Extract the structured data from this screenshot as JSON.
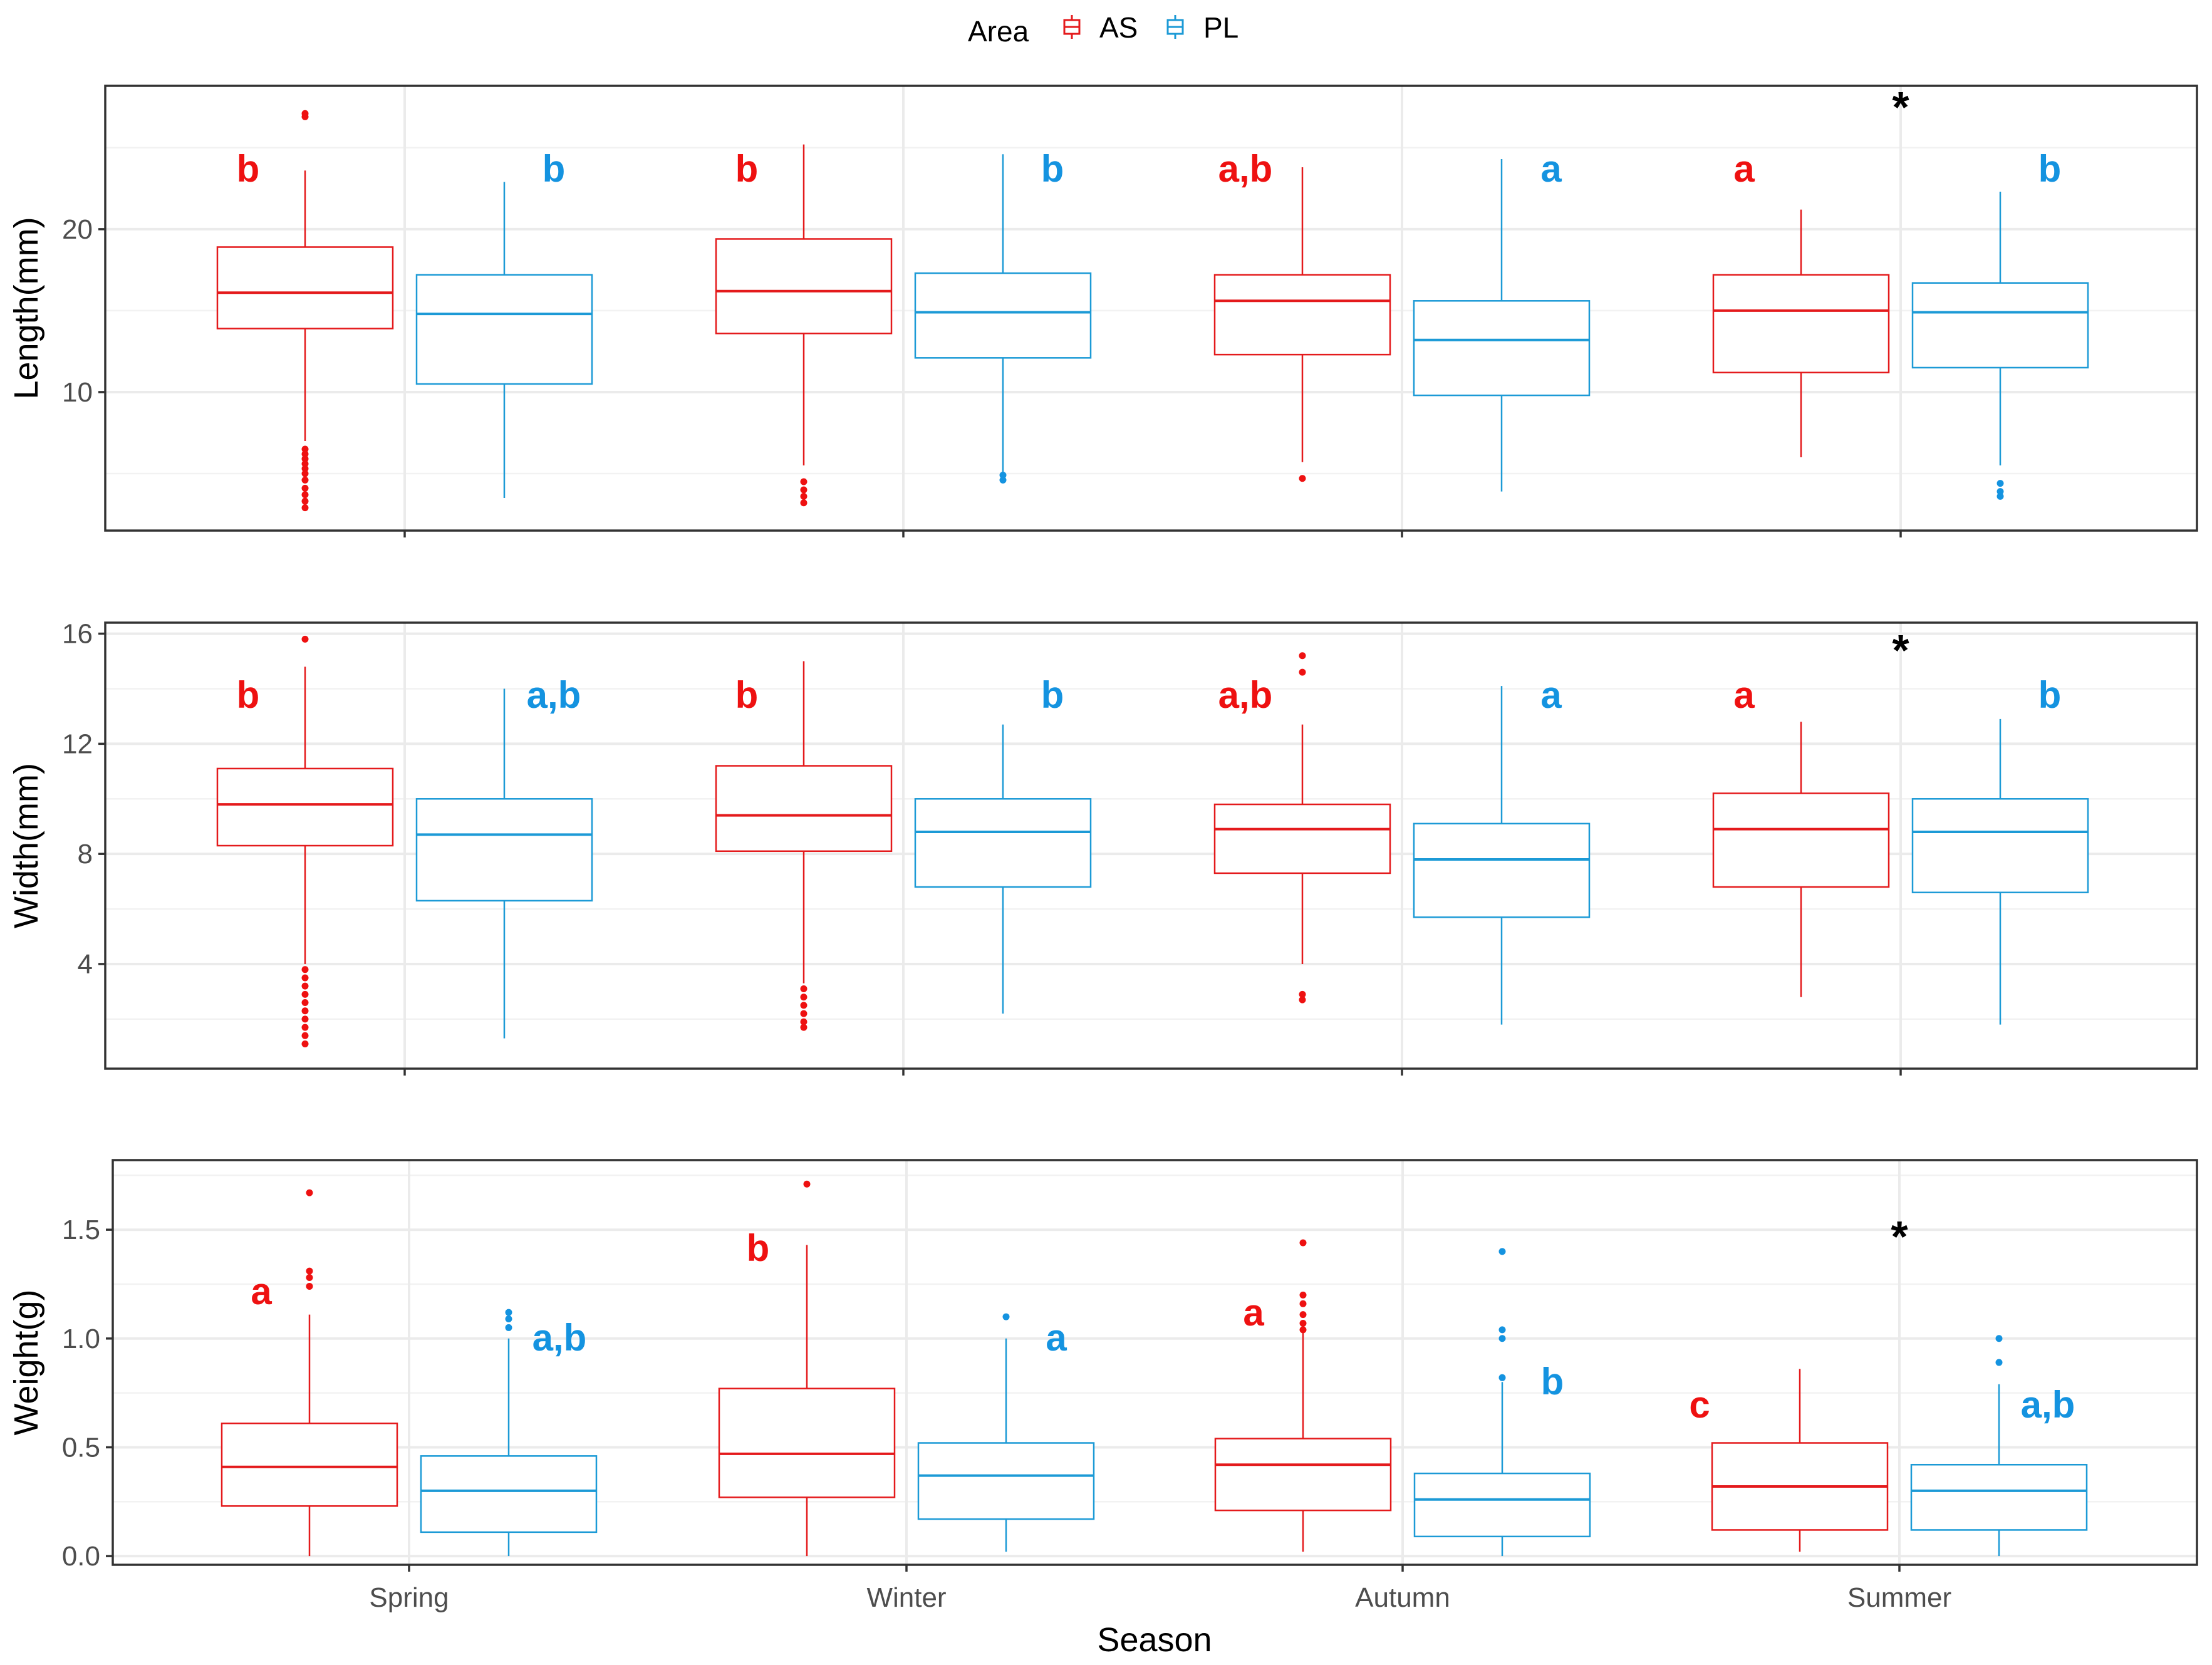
{
  "chart_data": {
    "type": "boxplot",
    "x_title": "Season",
    "legend": {
      "title": "Area",
      "position": "top",
      "entries": [
        {
          "name": "AS",
          "color": "#e41a1c"
        },
        {
          "name": "PL",
          "color": "#1c9ad6"
        }
      ]
    },
    "categories": [
      "Spring",
      "Winter",
      "Autumn",
      "Summer"
    ],
    "letter_colors": {
      "AS": "#ee1111",
      "PL": "#1493e0"
    },
    "panels": [
      {
        "ylabel": "Length(mm)",
        "ylim": [
          1.5,
          28.8
        ],
        "ticks": [
          10,
          20
        ],
        "tick_labels": [
          "10",
          "20"
        ],
        "minor_ticks": [
          5,
          15,
          25
        ],
        "groups": [
          {
            "category": "Spring",
            "area": "AS",
            "q1": 13.9,
            "median": 16.1,
            "q3": 18.9,
            "lower": 7.0,
            "upper": 23.6,
            "outliers": [
              26.9,
              27.1,
              6.5,
              6.2,
              5.9,
              5.6,
              5.3,
              5.0,
              4.6,
              4.1,
              3.7,
              3.3,
              2.9
            ],
            "letter": "b"
          },
          {
            "category": "Spring",
            "area": "PL",
            "q1": 10.5,
            "median": 14.8,
            "q3": 17.2,
            "lower": 3.5,
            "upper": 22.9,
            "outliers": [],
            "letter": "b"
          },
          {
            "category": "Winter",
            "area": "AS",
            "q1": 13.6,
            "median": 16.2,
            "q3": 19.4,
            "lower": 5.5,
            "upper": 25.2,
            "outliers": [
              4.5,
              4.0,
              3.6,
              3.2
            ],
            "letter": "b"
          },
          {
            "category": "Winter",
            "area": "PL",
            "q1": 12.1,
            "median": 14.9,
            "q3": 17.3,
            "lower": 5.0,
            "upper": 24.6,
            "outliers": [
              4.9,
              4.6
            ],
            "letter": "b"
          },
          {
            "category": "Autumn",
            "area": "AS",
            "q1": 12.3,
            "median": 15.6,
            "q3": 17.2,
            "lower": 5.7,
            "upper": 23.8,
            "outliers": [
              4.7
            ],
            "letter": "a,b"
          },
          {
            "category": "Autumn",
            "area": "PL",
            "q1": 9.8,
            "median": 13.2,
            "q3": 15.6,
            "lower": 3.9,
            "upper": 24.3,
            "outliers": [],
            "letter": "a"
          },
          {
            "category": "Summer",
            "area": "AS",
            "q1": 11.2,
            "median": 15.0,
            "q3": 17.2,
            "lower": 6.0,
            "upper": 21.2,
            "outliers": [],
            "letter": "a"
          },
          {
            "category": "Summer",
            "area": "PL",
            "q1": 11.5,
            "median": 14.9,
            "q3": 16.7,
            "lower": 5.5,
            "upper": 22.3,
            "outliers": [
              4.4,
              3.9,
              3.6
            ],
            "letter": "b"
          }
        ],
        "significance": [
          {
            "category": "Summer",
            "label": "*"
          }
        ]
      },
      {
        "ylabel": "Width(mm)",
        "ylim": [
          0.2,
          16.4
        ],
        "ticks": [
          4,
          8,
          12,
          16
        ],
        "tick_labels": [
          "4",
          "8",
          "12",
          "16"
        ],
        "minor_ticks": [
          2,
          6,
          10,
          14
        ],
        "groups": [
          {
            "category": "Spring",
            "area": "AS",
            "q1": 8.3,
            "median": 9.8,
            "q3": 11.1,
            "lower": 4.0,
            "upper": 14.8,
            "outliers": [
              15.8,
              3.8,
              3.5,
              3.2,
              2.9,
              2.6,
              2.3,
              2.0,
              1.7,
              1.4,
              1.1
            ],
            "letter": "b"
          },
          {
            "category": "Spring",
            "area": "PL",
            "q1": 6.3,
            "median": 8.7,
            "q3": 10.0,
            "lower": 1.3,
            "upper": 14.0,
            "outliers": [],
            "letter": "a,b"
          },
          {
            "category": "Winter",
            "area": "AS",
            "q1": 8.1,
            "median": 9.4,
            "q3": 11.2,
            "lower": 3.3,
            "upper": 15.0,
            "outliers": [
              3.1,
              2.8,
              2.5,
              2.2,
              1.9,
              1.7
            ],
            "letter": "b"
          },
          {
            "category": "Winter",
            "area": "PL",
            "q1": 6.8,
            "median": 8.8,
            "q3": 10.0,
            "lower": 2.2,
            "upper": 12.7,
            "outliers": [],
            "letter": "b"
          },
          {
            "category": "Autumn",
            "area": "AS",
            "q1": 7.3,
            "median": 8.9,
            "q3": 9.8,
            "lower": 4.0,
            "upper": 12.7,
            "outliers": [
              15.2,
              14.6,
              2.9,
              2.7
            ],
            "letter": "a,b"
          },
          {
            "category": "Autumn",
            "area": "PL",
            "q1": 5.7,
            "median": 7.8,
            "q3": 9.1,
            "lower": 1.8,
            "upper": 14.1,
            "outliers": [],
            "letter": "a"
          },
          {
            "category": "Summer",
            "area": "AS",
            "q1": 6.8,
            "median": 8.9,
            "q3": 10.2,
            "lower": 2.8,
            "upper": 12.8,
            "outliers": [],
            "letter": "a"
          },
          {
            "category": "Summer",
            "area": "PL",
            "q1": 6.6,
            "median": 8.8,
            "q3": 10.0,
            "lower": 1.8,
            "upper": 12.9,
            "outliers": [],
            "letter": "b"
          }
        ],
        "significance": [
          {
            "category": "Summer",
            "label": "*"
          }
        ]
      },
      {
        "ylabel": "Weight(g)",
        "ylim": [
          -0.04,
          1.82
        ],
        "ticks": [
          0.0,
          0.5,
          1.0,
          1.5
        ],
        "tick_labels": [
          "0.0",
          "0.5",
          "1.0",
          "1.5"
        ],
        "minor_ticks": [
          0.25,
          0.75,
          1.25,
          1.75
        ],
        "groups": [
          {
            "category": "Spring",
            "area": "AS",
            "q1": 0.23,
            "median": 0.41,
            "q3": 0.61,
            "lower": 0.0,
            "upper": 1.11,
            "outliers": [
              1.67,
              1.31,
              1.28,
              1.24
            ],
            "letter": "a"
          },
          {
            "category": "Spring",
            "area": "PL",
            "q1": 0.11,
            "median": 0.3,
            "q3": 0.46,
            "lower": 0.0,
            "upper": 1.0,
            "outliers": [
              1.12,
              1.09,
              1.05
            ],
            "letter": "a,b"
          },
          {
            "category": "Winter",
            "area": "AS",
            "q1": 0.27,
            "median": 0.47,
            "q3": 0.77,
            "lower": 0.0,
            "upper": 1.43,
            "outliers": [
              1.71
            ],
            "letter": "b"
          },
          {
            "category": "Winter",
            "area": "PL",
            "q1": 0.17,
            "median": 0.37,
            "q3": 0.52,
            "lower": 0.02,
            "upper": 1.0,
            "outliers": [
              1.1
            ],
            "letter": "a"
          },
          {
            "category": "Autumn",
            "area": "AS",
            "q1": 0.21,
            "median": 0.42,
            "q3": 0.54,
            "lower": 0.02,
            "upper": 1.03,
            "outliers": [
              1.44,
              1.2,
              1.16,
              1.11,
              1.07,
              1.04
            ],
            "letter": "a"
          },
          {
            "category": "Autumn",
            "area": "PL",
            "q1": 0.09,
            "median": 0.26,
            "q3": 0.38,
            "lower": 0.0,
            "upper": 0.8,
            "outliers": [
              1.4,
              1.04,
              1.0,
              0.82
            ],
            "letter": "b"
          },
          {
            "category": "Summer",
            "area": "AS",
            "q1": 0.12,
            "median": 0.32,
            "q3": 0.52,
            "lower": 0.02,
            "upper": 0.86,
            "outliers": [],
            "letter": "c"
          },
          {
            "category": "Summer",
            "area": "PL",
            "q1": 0.12,
            "median": 0.3,
            "q3": 0.42,
            "lower": 0.0,
            "upper": 0.79,
            "outliers": [
              1.0,
              0.89
            ],
            "letter": "a,b"
          }
        ],
        "significance": [
          {
            "category": "Summer",
            "label": "*"
          }
        ]
      }
    ]
  }
}
